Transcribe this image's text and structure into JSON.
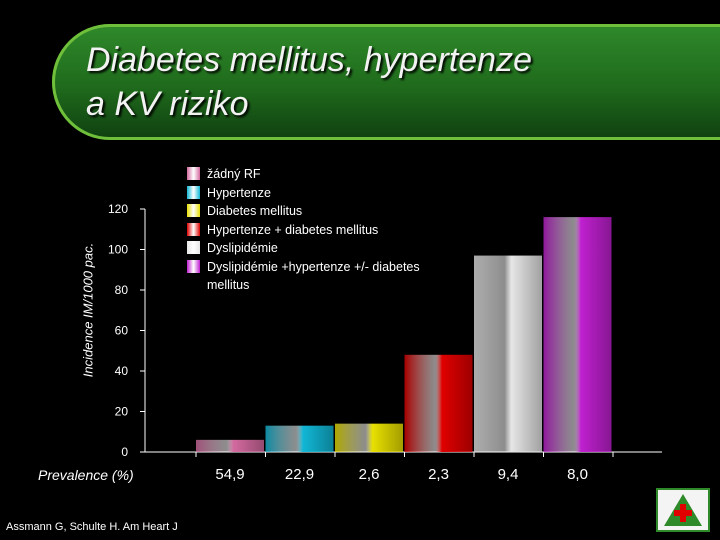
{
  "title_line1": "Diabetes mellitus, hypertenze",
  "title_line2": "a KV riziko",
  "prevalence_label": "Prevalence (%)",
  "source_text": "Assmann G, Schulte H. Am Heart J",
  "logo_icon": "green-cross-logo-icon",
  "chart_data": {
    "type": "bar",
    "ylabel": "Incidence IM/1000 pac.",
    "ylim": [
      0,
      120
    ],
    "yticks": [
      0,
      20,
      40,
      60,
      80,
      100,
      120
    ],
    "grid": false,
    "legend_position": "top-left inside plot",
    "categories": [
      "žádný RF",
      "Hypertenze",
      "Diabetes mellitus",
      "Hypertenze + diabetes mellitus",
      "Dyslipidémie",
      "Dyslipidémie +hypertenze +/- diabetes mellitus"
    ],
    "values": [
      6,
      13,
      14,
      48,
      97,
      116
    ],
    "prevalence": [
      "54,9",
      "22,9",
      "2,6",
      "2,3",
      "9,4",
      "8,0"
    ],
    "colors": [
      "#d46aa0",
      "#11b7d6",
      "#e8e000",
      "#e00000",
      "#e6e6e6",
      "#c020d0"
    ]
  }
}
